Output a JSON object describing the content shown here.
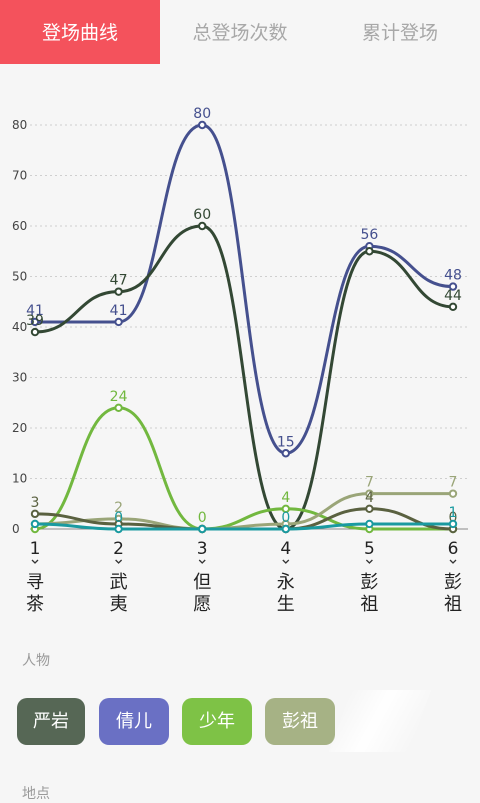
{
  "tabs": [
    {
      "label": "登场曲线",
      "active": true
    },
    {
      "label": "总登场次数",
      "active": false
    },
    {
      "label": "累计登场",
      "active": false
    }
  ],
  "section_people": "人物",
  "section_places": "地点",
  "chips": [
    {
      "label": "严岩",
      "color": "#566755"
    },
    {
      "label": "倩儿",
      "color": "#6a70c4"
    },
    {
      "label": "少年",
      "color": "#7ec246"
    },
    {
      "label": "彭祖",
      "color": "#a6b285"
    }
  ],
  "chart_data": {
    "type": "line",
    "x": [
      1,
      2,
      3,
      4,
      5,
      6
    ],
    "x_labels": [
      "1",
      "2",
      "3",
      "4",
      "5",
      "6"
    ],
    "x_names": [
      "寻茶",
      "武夷",
      "但愿",
      "永生",
      "彭祖",
      "彭祖"
    ],
    "ylim": [
      0,
      80
    ],
    "yticks": [
      0,
      10,
      20,
      30,
      40,
      50,
      60,
      70,
      80
    ],
    "grid": true,
    "series": [
      {
        "name": "倩儿",
        "color": "#45508e",
        "values": [
          41,
          41,
          80,
          15,
          56,
          48
        ],
        "labels": [
          true,
          true,
          true,
          true,
          true,
          true
        ]
      },
      {
        "name": "严岩",
        "color": "#334834",
        "values": [
          39,
          47,
          60,
          0,
          55,
          44
        ],
        "labels": [
          true,
          true,
          true,
          false,
          false,
          true
        ]
      },
      {
        "name": "少年",
        "color": "#72b83f",
        "values": [
          0,
          24,
          0,
          4,
          0,
          0
        ],
        "labels": [
          false,
          true,
          true,
          true,
          false,
          false
        ]
      },
      {
        "name": "彭祖",
        "color": "#9aa578",
        "values": [
          1,
          2,
          0,
          1,
          7,
          7
        ],
        "labels": [
          false,
          true,
          false,
          false,
          true,
          true
        ]
      },
      {
        "name": "",
        "color": "#5a6140",
        "values": [
          3,
          1,
          0,
          0,
          4,
          0
        ],
        "labels": [
          true,
          false,
          false,
          false,
          true,
          true
        ]
      },
      {
        "name": "",
        "color": "#1a9aa0",
        "values": [
          1,
          0,
          0,
          0,
          1,
          1
        ],
        "labels": [
          false,
          true,
          false,
          true,
          false,
          true
        ]
      }
    ]
  }
}
